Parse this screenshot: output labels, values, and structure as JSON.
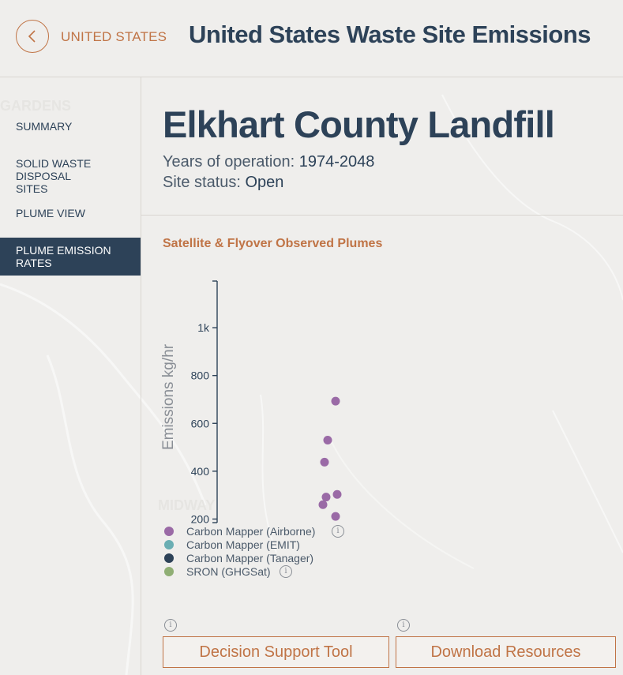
{
  "header": {
    "back_label": "UNITED STATES",
    "title": "United States Waste Site Emissions"
  },
  "sidebar": {
    "items": [
      {
        "label": "SUMMARY",
        "active": false
      },
      {
        "label": "SOLID WASTE DISPOSAL SITES",
        "active": false
      },
      {
        "label": "PLUME VIEW",
        "active": false
      },
      {
        "label": "PLUME EMISSION RATES",
        "active": true
      }
    ]
  },
  "map_labels": {
    "gardens": "GARDENS",
    "midway": "MIDWAY"
  },
  "site": {
    "name": "Elkhart County Landfill",
    "years_label": "Years of operation:",
    "years_value": "1974-2048",
    "status_label": "Site status:",
    "status_value": "Open"
  },
  "chart_heading": "Satellite & Flyover Observed Plumes",
  "chart_data": {
    "type": "scatter",
    "title": "",
    "xlabel": "",
    "ylabel": "Emissions kg/hr",
    "ylim": [
      185,
      1195
    ],
    "y_ticks": [
      200,
      400,
      600,
      800,
      1000
    ],
    "y_tick_labels": [
      "200",
      "400",
      "600",
      "800",
      "1k"
    ],
    "series": [
      {
        "name": "Carbon Mapper (Airborne)",
        "color": "#9a6aa6",
        "points": [
          {
            "x": 1,
            "y": 693
          },
          {
            "x": 0.5,
            "y": 530
          },
          {
            "x": 0.3,
            "y": 438
          },
          {
            "x": 1.1,
            "y": 303
          },
          {
            "x": 0.4,
            "y": 292
          },
          {
            "x": 0.2,
            "y": 260
          },
          {
            "x": 1.0,
            "y": 211
          }
        ]
      },
      {
        "name": "Carbon Mapper (EMIT)",
        "color": "#6aaeb3",
        "points": []
      },
      {
        "name": "Carbon Mapper (Tanager)",
        "color": "#2d4258",
        "points": []
      },
      {
        "name": "SRON (GHGSat)",
        "color": "#8fae74",
        "points": []
      }
    ]
  },
  "legend": [
    {
      "label": "Carbon Mapper (Airborne)",
      "color": "#9a6aa6",
      "info": true
    },
    {
      "label": "Carbon Mapper (EMIT)",
      "color": "#6aaeb3",
      "info": false
    },
    {
      "label": "Carbon Mapper (Tanager)",
      "color": "#2d4258",
      "info": false
    },
    {
      "label": "SRON (GHGSat)",
      "color": "#8fae74",
      "info": true
    }
  ],
  "info_glyph": "i",
  "buttons": {
    "decision_support": "Decision Support Tool",
    "download_resources": "Download Resources"
  }
}
